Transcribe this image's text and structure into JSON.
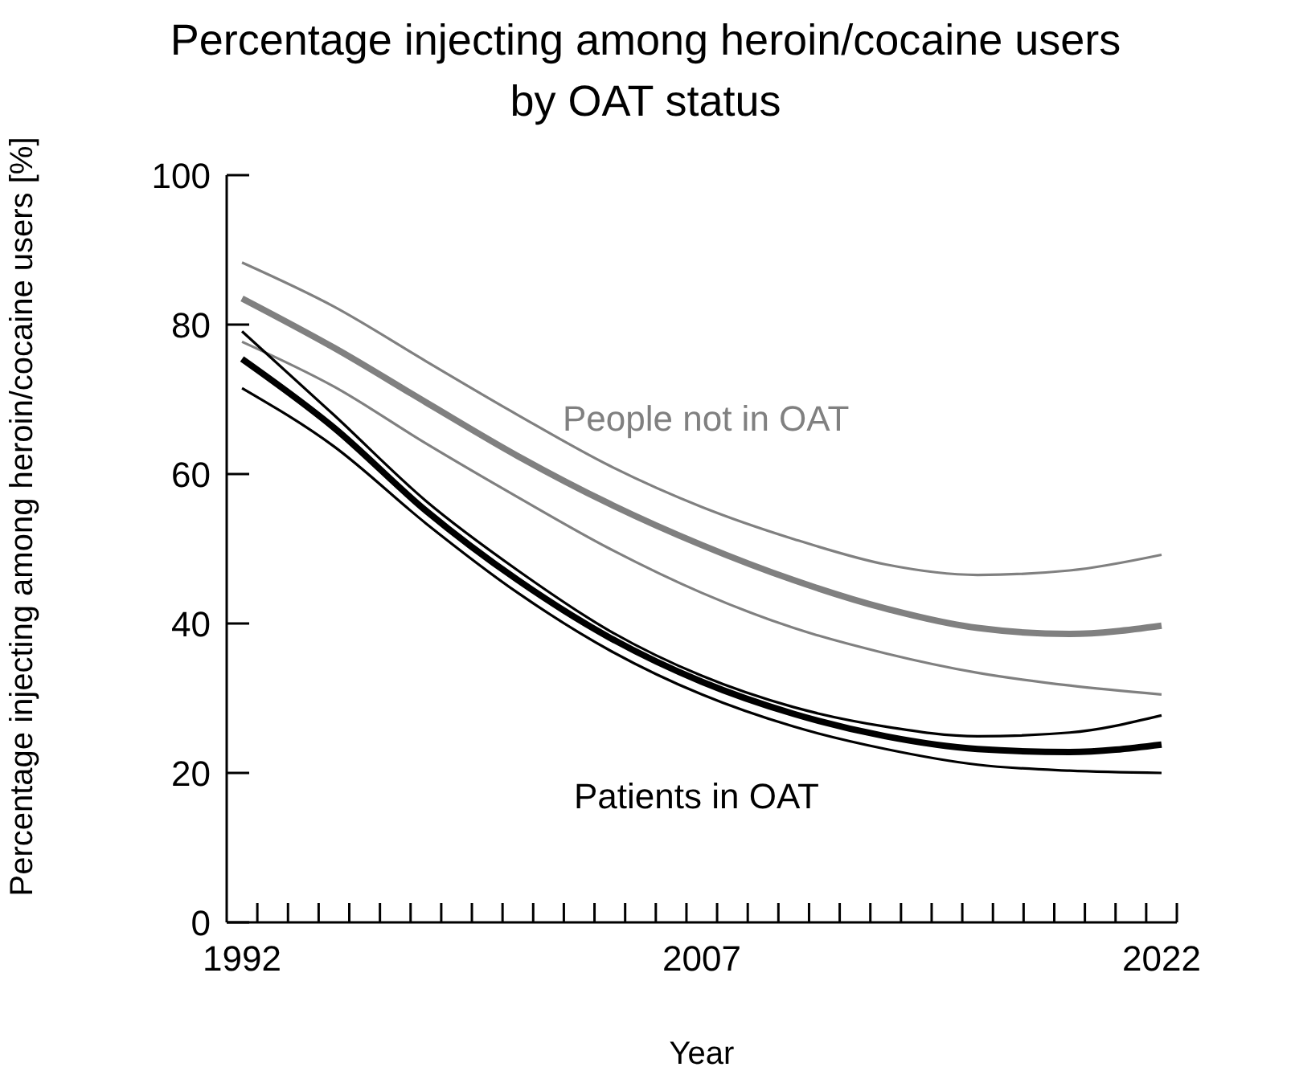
{
  "chart_data": {
    "type": "line",
    "title": "Percentage injecting among heroin/cocaine users",
    "subtitle": "by OAT status",
    "xlabel": "Year",
    "ylabel": "Percentage injecting among heroin/cocaine users [%]",
    "x": [
      1992,
      1995,
      1998,
      2001,
      2004,
      2007,
      2010,
      2013,
      2016,
      2019,
      2022
    ],
    "series": [
      {
        "name": "People not in OAT",
        "color": "#808080",
        "values": [
          83.5,
          76.9,
          69.6,
          62.4,
          56.0,
          50.5,
          45.8,
          42.0,
          39.4,
          38.6,
          39.7
        ]
      },
      {
        "color": "#808080",
        "values": [
          77.7,
          71.7,
          64.1,
          56.9,
          50.0,
          44.1,
          39.4,
          36.0,
          33.4,
          31.7,
          30.5
        ]
      },
      {
        "color": "#808080",
        "values": [
          88.3,
          82.4,
          75.1,
          67.9,
          61.1,
          55.6,
          51.3,
          47.9,
          46.5,
          47.1,
          49.2
        ]
      },
      {
        "name": "Patients in OAT",
        "color": "#000000",
        "values": [
          75.4,
          66.2,
          55.1,
          45.8,
          38.1,
          32.2,
          27.9,
          24.9,
          23.2,
          22.8,
          23.8
        ]
      },
      {
        "color": "#000000",
        "values": [
          71.5,
          63.7,
          53.4,
          44.1,
          36.4,
          30.5,
          26.2,
          23.2,
          21.1,
          20.3,
          20.0
        ]
      },
      {
        "color": "#000000",
        "values": [
          79.1,
          67.9,
          56.4,
          47.1,
          39.0,
          33.0,
          28.8,
          26.2,
          24.9,
          25.4,
          27.7
        ]
      }
    ],
    "xlim": [
      1991.5,
      2022.5
    ],
    "xticks": [
      1992,
      2007,
      2022,
      {
        "value": 1992.5,
        "label": null
      },
      {
        "value": 1993.5,
        "label": null
      },
      {
        "value": 1994.5,
        "label": null
      },
      {
        "value": 1995.5,
        "label": null
      },
      {
        "value": 1996.5,
        "label": null
      },
      {
        "value": 1997.5,
        "label": null
      },
      {
        "value": 1998.5,
        "label": null
      },
      {
        "value": 1999.5,
        "label": null
      },
      {
        "value": 2000.5,
        "label": null
      },
      {
        "value": 2001.5,
        "label": null
      },
      {
        "value": 2002.5,
        "label": null
      },
      {
        "value": 2003.5,
        "label": null
      },
      {
        "value": 2004.5,
        "label": null
      },
      {
        "value": 2005.5,
        "label": null
      },
      {
        "value": 2006.5,
        "label": null
      },
      {
        "value": 2007.5,
        "label": null
      },
      {
        "value": 2008.5,
        "label": null
      },
      {
        "value": 2009.5,
        "label": null
      },
      {
        "value": 2010.5,
        "label": null
      },
      {
        "value": 2011.5,
        "label": null
      },
      {
        "value": 2012.5,
        "label": null
      },
      {
        "value": 2013.5,
        "label": null
      },
      {
        "value": 2014.5,
        "label": null
      },
      {
        "value": 2015.5,
        "label": null
      },
      {
        "value": 2016.5,
        "label": null
      },
      {
        "value": 2017.5,
        "label": null
      },
      {
        "value": 2018.5,
        "label": null
      },
      {
        "value": 2019.5,
        "label": null
      },
      {
        "value": 2020.5,
        "label": null
      },
      {
        "value": 2021.5,
        "label": null
      },
      {
        "value": 2022.5,
        "label": null
      }
    ],
    "ylim": [
      0,
      100
    ],
    "yticks": [
      0,
      20,
      40,
      60,
      80,
      100
    ],
    "grid": false,
    "legend": false,
    "line_style": "solid",
    "marker": "none"
  }
}
